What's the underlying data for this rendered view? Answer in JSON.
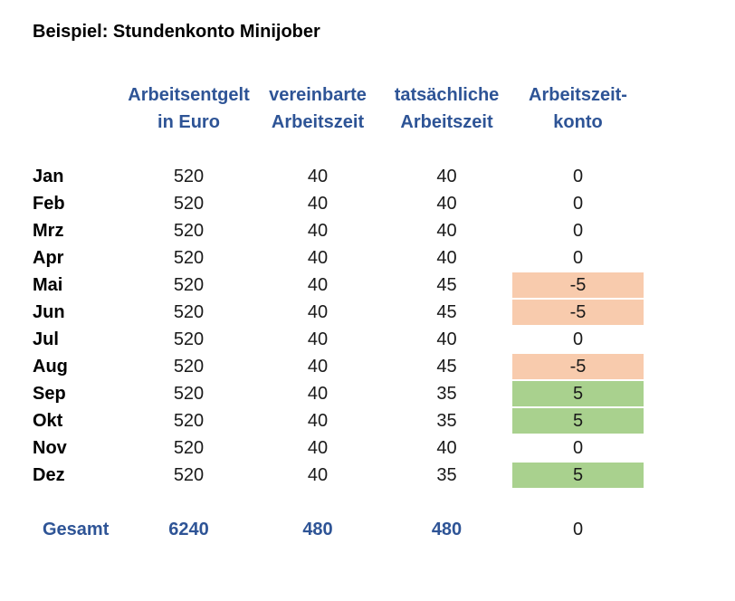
{
  "title": "Beispiel: Stundenkonto Minijober",
  "table": {
    "headers": [
      {
        "line1": "Arbeitsentgelt",
        "line2": "in Euro"
      },
      {
        "line1": "vereinbarte",
        "line2": "Arbeitszeit"
      },
      {
        "line1": "tatsächliche",
        "line2": "Arbeitszeit"
      },
      {
        "line1": "Arbeitszeit-",
        "line2": "konto"
      }
    ],
    "rows": [
      {
        "month": "Jan",
        "values": [
          "520",
          "40",
          "40",
          "0"
        ],
        "fill": "none"
      },
      {
        "month": "Feb",
        "values": [
          "520",
          "40",
          "40",
          "0"
        ],
        "fill": "none"
      },
      {
        "month": "Mrz",
        "values": [
          "520",
          "40",
          "40",
          "0"
        ],
        "fill": "none"
      },
      {
        "month": "Apr",
        "values": [
          "520",
          "40",
          "40",
          "0"
        ],
        "fill": "none"
      },
      {
        "month": "Mai",
        "values": [
          "520",
          "40",
          "45",
          "-5"
        ],
        "fill": "negative"
      },
      {
        "month": "Jun",
        "values": [
          "520",
          "40",
          "45",
          "-5"
        ],
        "fill": "negative"
      },
      {
        "month": "Jul",
        "values": [
          "520",
          "40",
          "40",
          "0"
        ],
        "fill": "none"
      },
      {
        "month": "Aug",
        "values": [
          "520",
          "40",
          "45",
          "-5"
        ],
        "fill": "negative"
      },
      {
        "month": "Sep",
        "values": [
          "520",
          "40",
          "35",
          "5"
        ],
        "fill": "positive"
      },
      {
        "month": "Okt",
        "values": [
          "520",
          "40",
          "35",
          "5"
        ],
        "fill": "positive"
      },
      {
        "month": "Nov",
        "values": [
          "520",
          "40",
          "40",
          "0"
        ],
        "fill": "none"
      },
      {
        "month": "Dez",
        "values": [
          "520",
          "40",
          "35",
          "5"
        ],
        "fill": "positive"
      }
    ],
    "total": {
      "label": "Gesamt",
      "entgelt": "6240",
      "vereinbart": "480",
      "tatsaechlich": "480",
      "konto": "0"
    }
  },
  "colors": {
    "accent_blue": "#2e5496",
    "negative_fill": "#f8cbad",
    "positive_fill": "#a9d18e"
  }
}
